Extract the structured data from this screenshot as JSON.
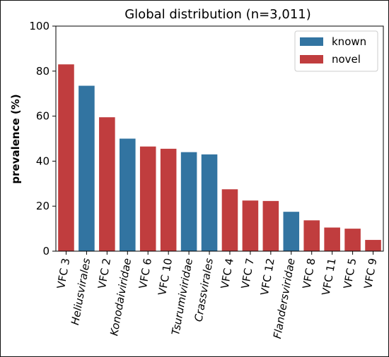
{
  "chart_data": {
    "type": "bar",
    "title": "Global distribution (n=3,011)",
    "xlabel": "",
    "ylabel": "prevalence (%)",
    "ylim": [
      0,
      100
    ],
    "yticks": [
      "0",
      "20",
      "40",
      "60",
      "80",
      "100"
    ],
    "categories": [
      "VFC 3",
      "Heliusvirales",
      "VFC 2",
      "Konodaiviridae",
      "VFC 6",
      "VFC 10",
      "Tsurumiviridae",
      "Crassvirales",
      "VFC 4",
      "VFC 7",
      "VFC 12",
      "Flandersviridae",
      "VFC 8",
      "VFC 11",
      "VFC 5",
      "VFC 9"
    ],
    "italic": [
      false,
      true,
      false,
      true,
      false,
      false,
      true,
      true,
      false,
      false,
      false,
      true,
      false,
      false,
      false,
      false
    ],
    "values": [
      83,
      73.5,
      59.5,
      50,
      46.5,
      45.5,
      44,
      43,
      27.5,
      22.5,
      22.3,
      17.5,
      13.7,
      10.5,
      10,
      5
    ],
    "groups": [
      "novel",
      "known",
      "novel",
      "known",
      "novel",
      "novel",
      "known",
      "known",
      "novel",
      "novel",
      "novel",
      "known",
      "novel",
      "novel",
      "novel",
      "novel"
    ],
    "legend": {
      "position": "top-right",
      "entries": [
        {
          "key": "known",
          "label": "known",
          "color": "#3274a1"
        },
        {
          "key": "novel",
          "label": "novel",
          "color": "#c03d3e"
        }
      ]
    },
    "grid": false
  }
}
